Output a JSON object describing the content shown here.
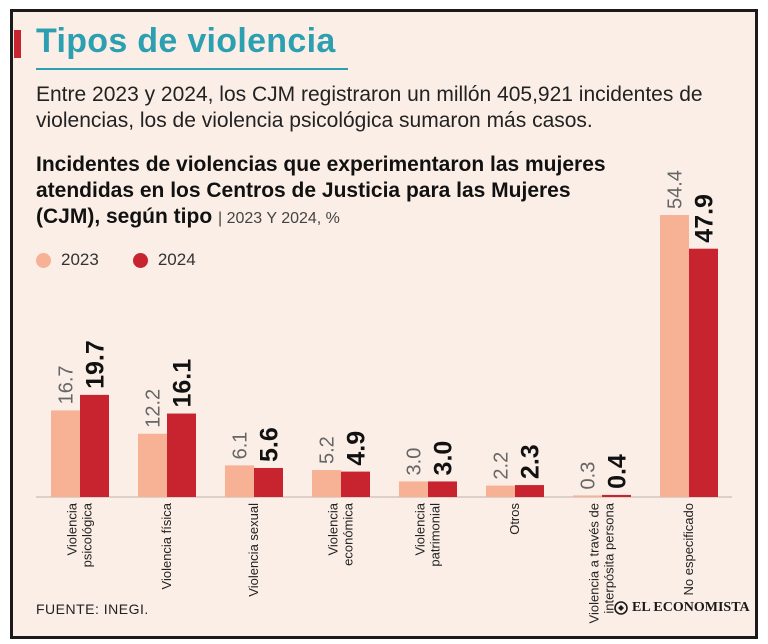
{
  "header": {
    "title": "Tipos de violencia",
    "subtitle": "Entre 2023 y 2024, los CJM registraron un millón 405,921 incidentes de violencias, los de violencia psicológica sumaron más casos."
  },
  "colors": {
    "accent": "#c8242f",
    "title": "#2c9fb0",
    "series_2023": "#f7b295",
    "series_2024": "#c8242f"
  },
  "footer": {
    "source": "FUENTE: INEGI.",
    "brand": "EL ECONOMISTA"
  },
  "chart_data": {
    "type": "bar",
    "title": "Incidentes de violencias que experimentaron las mujeres atendidas en los Centros de Justicia para las Mujeres (CJM), según tipo",
    "subtitle": "2023 Y 2024, %",
    "categories": [
      [
        "Violencia",
        "psicológica"
      ],
      [
        "Violencia física"
      ],
      [
        "Violencia sexual"
      ],
      [
        "Violencia",
        "económica"
      ],
      [
        "Violencia",
        "patrimonial"
      ],
      [
        "Otros"
      ],
      [
        "Violencia a través de",
        "interpósita persona"
      ],
      [
        "No especificado"
      ]
    ],
    "series": [
      {
        "name": "2023",
        "values": [
          16.7,
          12.2,
          6.1,
          5.2,
          3.0,
          2.2,
          0.3,
          54.4
        ]
      },
      {
        "name": "2024",
        "values": [
          19.7,
          16.1,
          5.6,
          4.9,
          3.0,
          2.3,
          0.4,
          47.9
        ]
      }
    ],
    "value_labels": [
      [
        "16.7",
        "12.2",
        "6.1",
        "5.2",
        "3.0",
        "2.2",
        "0.3",
        "54.4"
      ],
      [
        "19.7",
        "16.1",
        "5.6",
        "4.9",
        "3.0",
        "2.3",
        "0.4",
        "47.9"
      ]
    ],
    "ylim": [
      0,
      54.4
    ],
    "grid": false,
    "legend": "top-left"
  }
}
